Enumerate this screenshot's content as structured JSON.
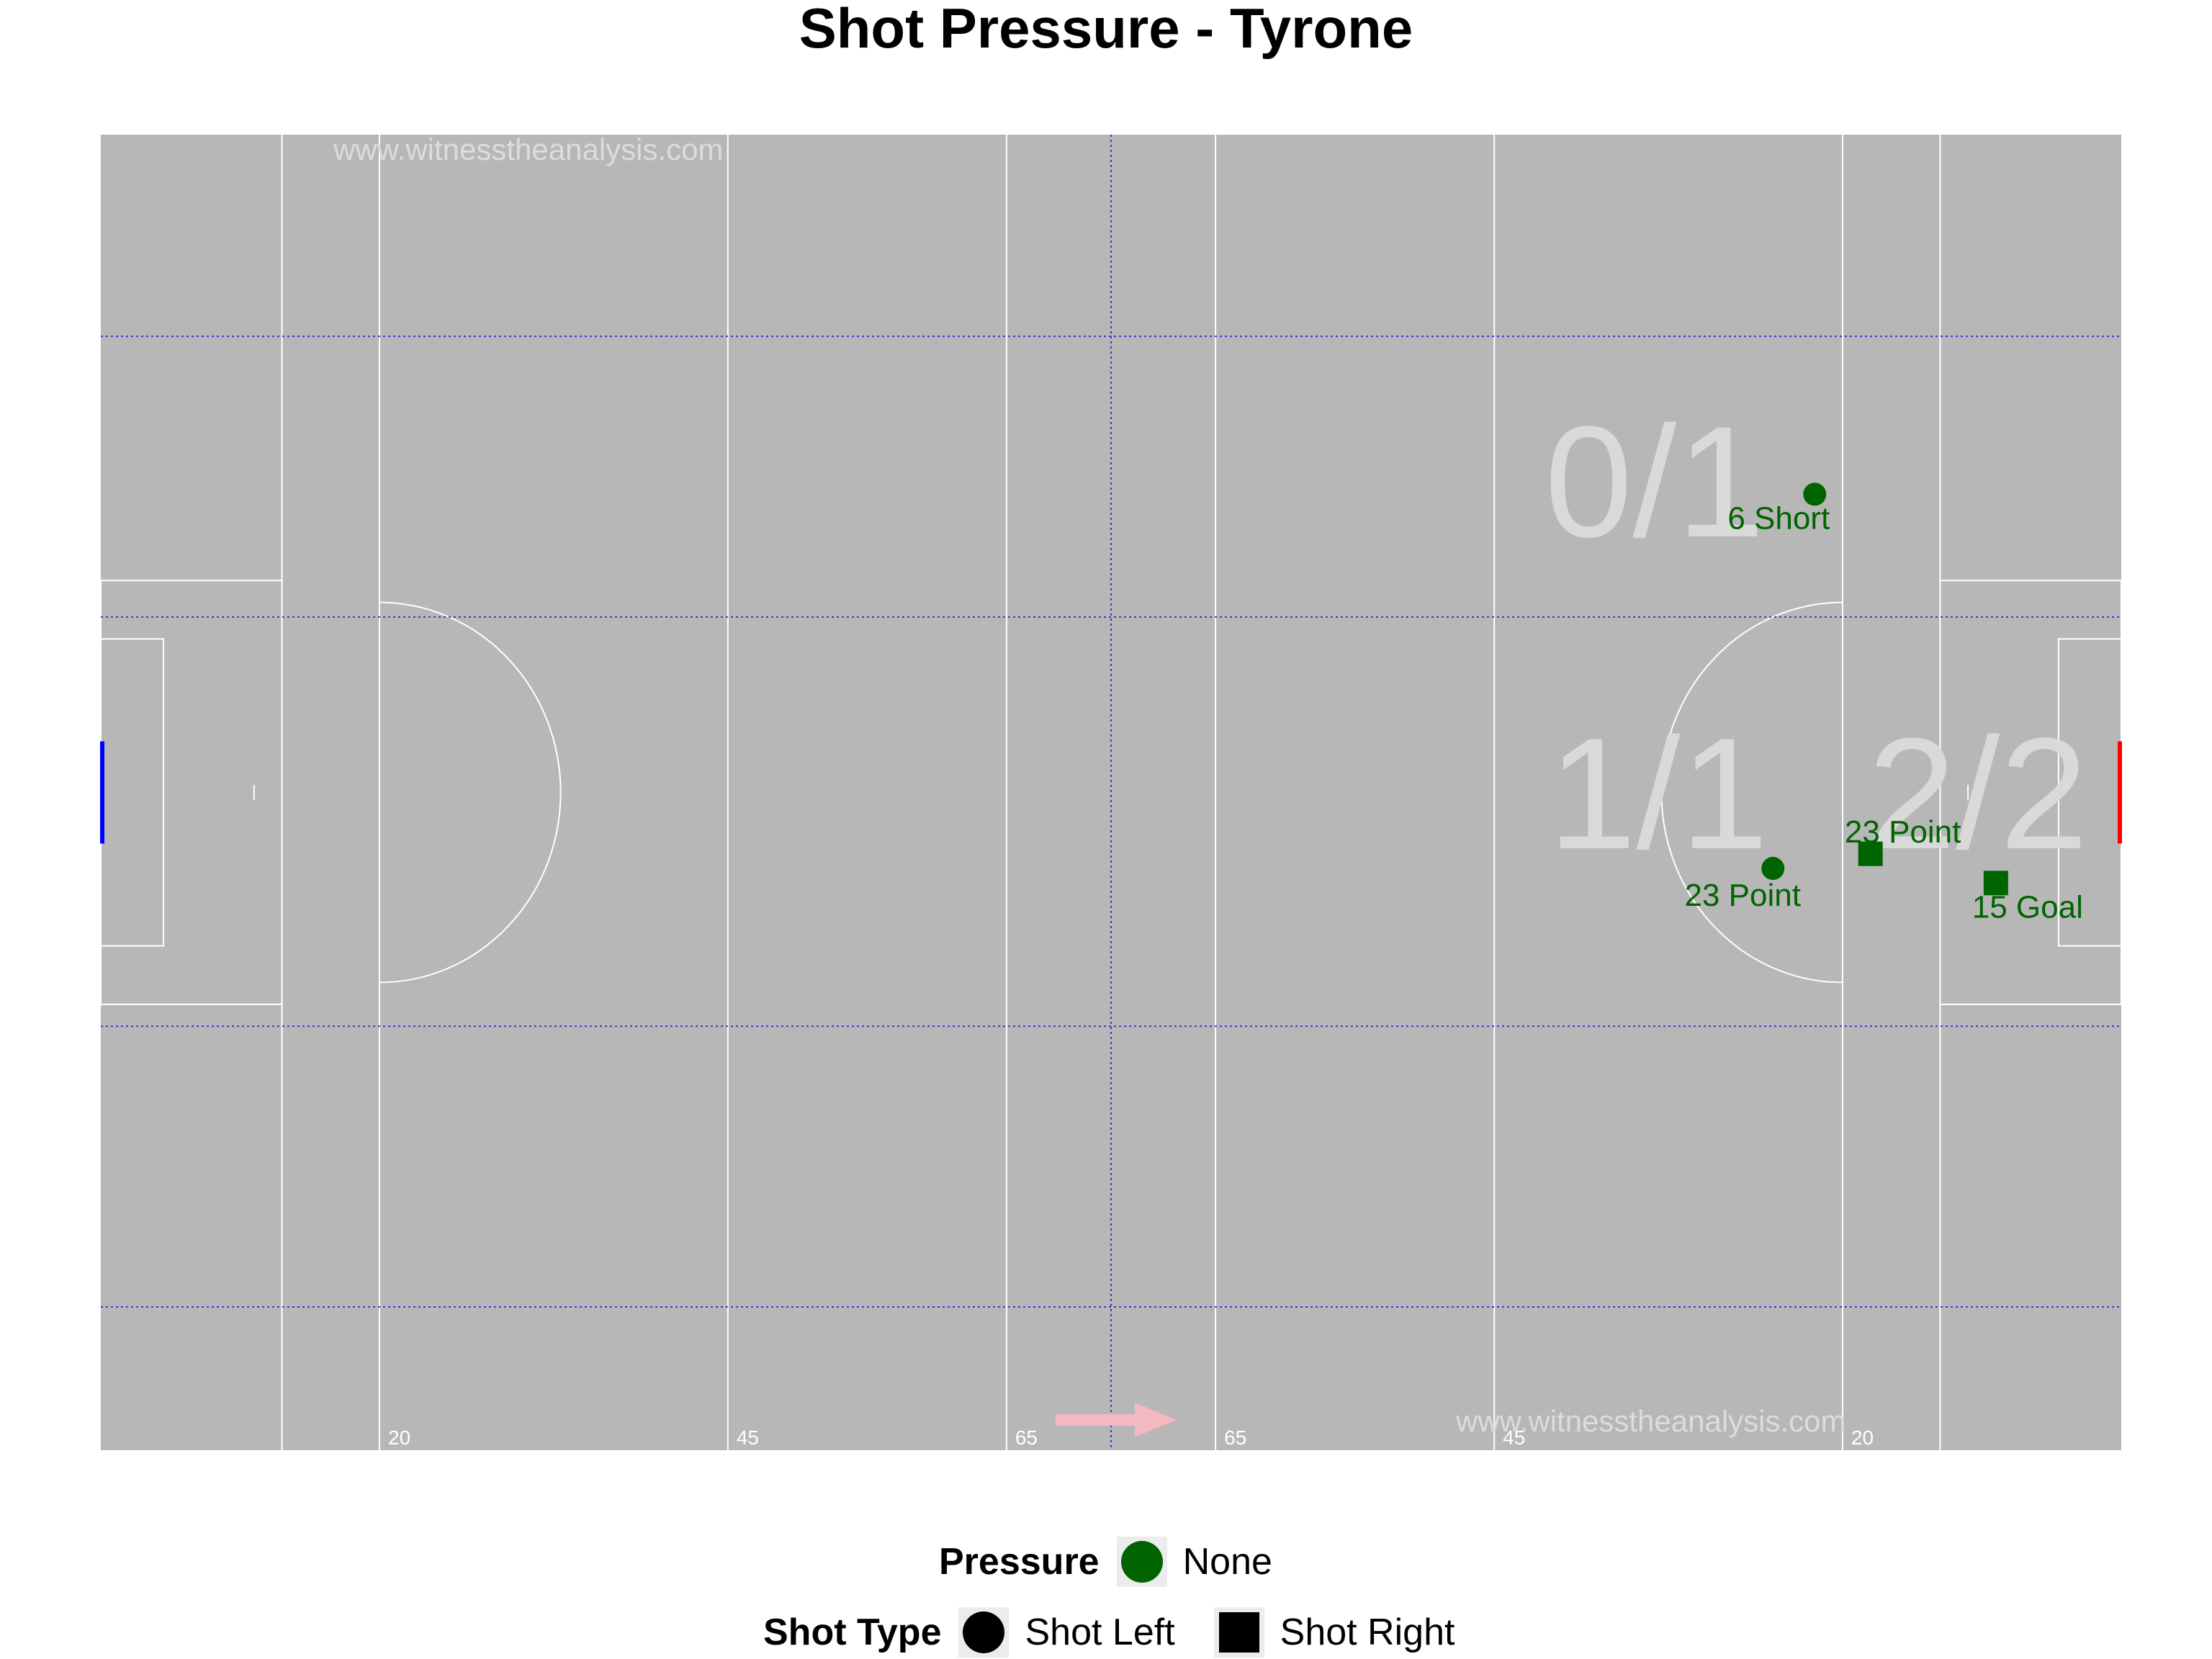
{
  "title": "Shot Pressure - Tyrone",
  "watermark": "www.witnesstheanalysis.com",
  "pitch": {
    "distance_labels": [
      "20",
      "45",
      "65",
      "65",
      "45",
      "20"
    ]
  },
  "zone_labels": [
    "0/1",
    "1/1",
    "2/2"
  ],
  "legend": {
    "pressure_title": "Pressure",
    "pressure_items": [
      {
        "label": "None",
        "color": "#006400"
      }
    ],
    "shot_type_title": "Shot Type",
    "shot_type_items": [
      {
        "label": "Shot Left",
        "shape": "circle"
      },
      {
        "label": "Shot Right",
        "shape": "square"
      }
    ]
  },
  "colors": {
    "pitch": "#b7b7b7",
    "lines": "#ffffff",
    "grid": "#3b35d6",
    "marker": "#006400",
    "zone_label": "#d9d9d9",
    "left_goal": "#0000ff",
    "right_goal": "#ff0000",
    "arrow": "#f4b8c1"
  },
  "chart_data": {
    "type": "scatter",
    "title": "Shot Pressure - Tyrone",
    "x_unit": "metres along pitch (0-145)",
    "y_unit": "metres across pitch (0-90)",
    "xlim": [
      0,
      145
    ],
    "ylim": [
      0,
      90
    ],
    "points": [
      {
        "x": 123,
        "y": 65.4,
        "label": "6 Short",
        "shot_type": "Shot Left",
        "pressure": "None"
      },
      {
        "x": 120,
        "y": 39.8,
        "label": "23 Point",
        "shot_type": "Shot Left",
        "pressure": "None"
      },
      {
        "x": 127,
        "y": 40.8,
        "label": "23 Point",
        "shot_type": "Shot Right",
        "pressure": "None"
      },
      {
        "x": 136,
        "y": 38.8,
        "label": "15 Goal",
        "shot_type": "Shot Right",
        "pressure": "None"
      }
    ]
  }
}
